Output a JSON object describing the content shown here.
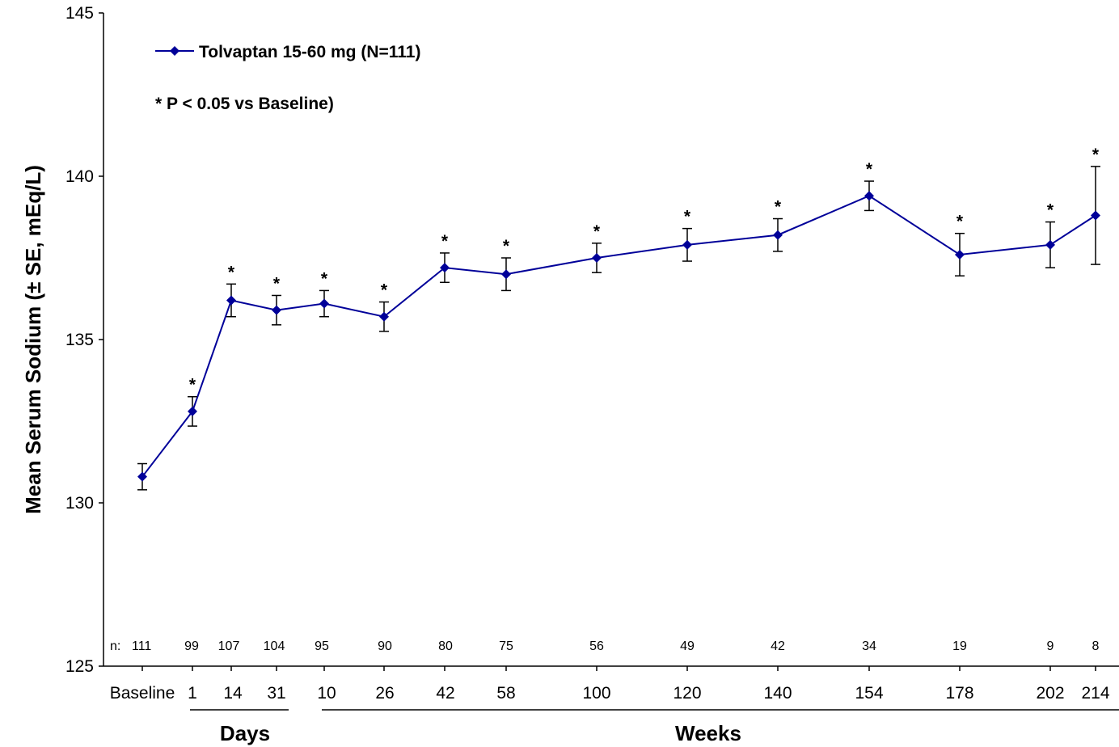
{
  "chart_data": {
    "type": "line",
    "ylabel": "Mean Serum Sodium (± SE,  mEq/L)",
    "ylim": [
      125,
      145
    ],
    "yticks": [
      125,
      130,
      135,
      140,
      145
    ],
    "x_tick_labels": [
      "Baseline",
      "1",
      "14",
      "31",
      "10",
      "26",
      "42",
      "58",
      "100",
      "120",
      "140",
      "154",
      "178",
      "202",
      "214"
    ],
    "groups": [
      {
        "label": "Days",
        "from_index": 1,
        "to_index": 3
      },
      {
        "label": "Weeks",
        "from_index": 4,
        "to_index": 14
      }
    ],
    "n_prefix": "n:",
    "n_values": [
      "111",
      "99",
      "107",
      "104",
      "95",
      "90",
      "80",
      "75",
      "56",
      "49",
      "42",
      "34",
      "19",
      "9",
      "8"
    ],
    "series": [
      {
        "name": "Tolvaptan 15-60 mg (N=111)",
        "color": "#000099",
        "marker": "diamond",
        "values": [
          130.8,
          132.8,
          136.2,
          135.9,
          136.1,
          135.7,
          137.2,
          137.0,
          137.5,
          137.9,
          138.2,
          139.4,
          137.6,
          137.9,
          138.8
        ],
        "se": [
          0.4,
          0.45,
          0.5,
          0.45,
          0.4,
          0.45,
          0.45,
          0.5,
          0.45,
          0.5,
          0.5,
          0.45,
          0.65,
          0.7,
          1.5
        ],
        "significant": [
          false,
          true,
          true,
          true,
          true,
          true,
          true,
          true,
          true,
          true,
          true,
          true,
          true,
          true,
          true
        ]
      }
    ],
    "significance_symbol": "*",
    "note": "* P < 0.05 vs Baseline)",
    "grid": false,
    "legend_position": "top-left"
  }
}
